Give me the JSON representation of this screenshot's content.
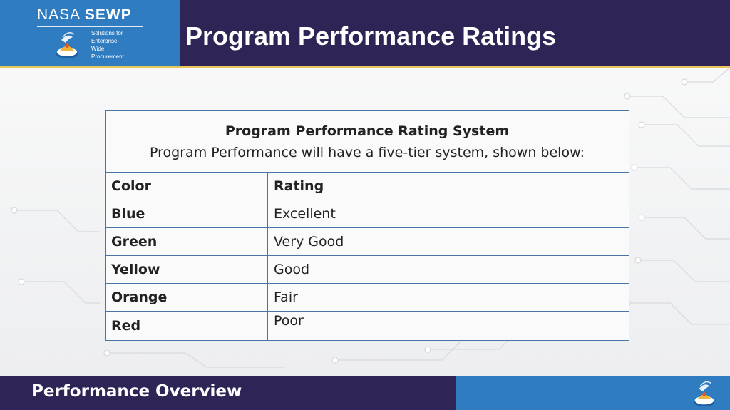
{
  "header": {
    "logo": {
      "wordmark_light": "NASA ",
      "wordmark_bold": "SEWP",
      "tagline": "Solutions for\nEnterprise-\nWide\nProcurement"
    },
    "title": "Program Performance Ratings"
  },
  "table": {
    "caption_title": "Program Performance Rating System",
    "caption_subtitle": "Program Performance will have a five-tier system, shown below:",
    "headers": [
      "Color",
      "Rating"
    ],
    "rows": [
      {
        "color": "Blue",
        "rating": "Excellent",
        "hex": "#4a8fd4"
      },
      {
        "color": "Green",
        "rating": "Very Good",
        "hex": "#7dc142"
      },
      {
        "color": "Yellow",
        "rating": "Good",
        "hex": "#f6cc3c"
      },
      {
        "color": "Orange",
        "rating": "Fair",
        "hex": "#f4b400"
      },
      {
        "color": "Red",
        "rating": "Poor",
        "hex": "#e60000"
      }
    ]
  },
  "footer": {
    "section_title": "Performance Overview"
  },
  "colors": {
    "header_blue": "#2f7cc0",
    "header_navy": "#2e2556",
    "accent_gold": "#e8c65a",
    "table_border": "#4a74a8"
  }
}
